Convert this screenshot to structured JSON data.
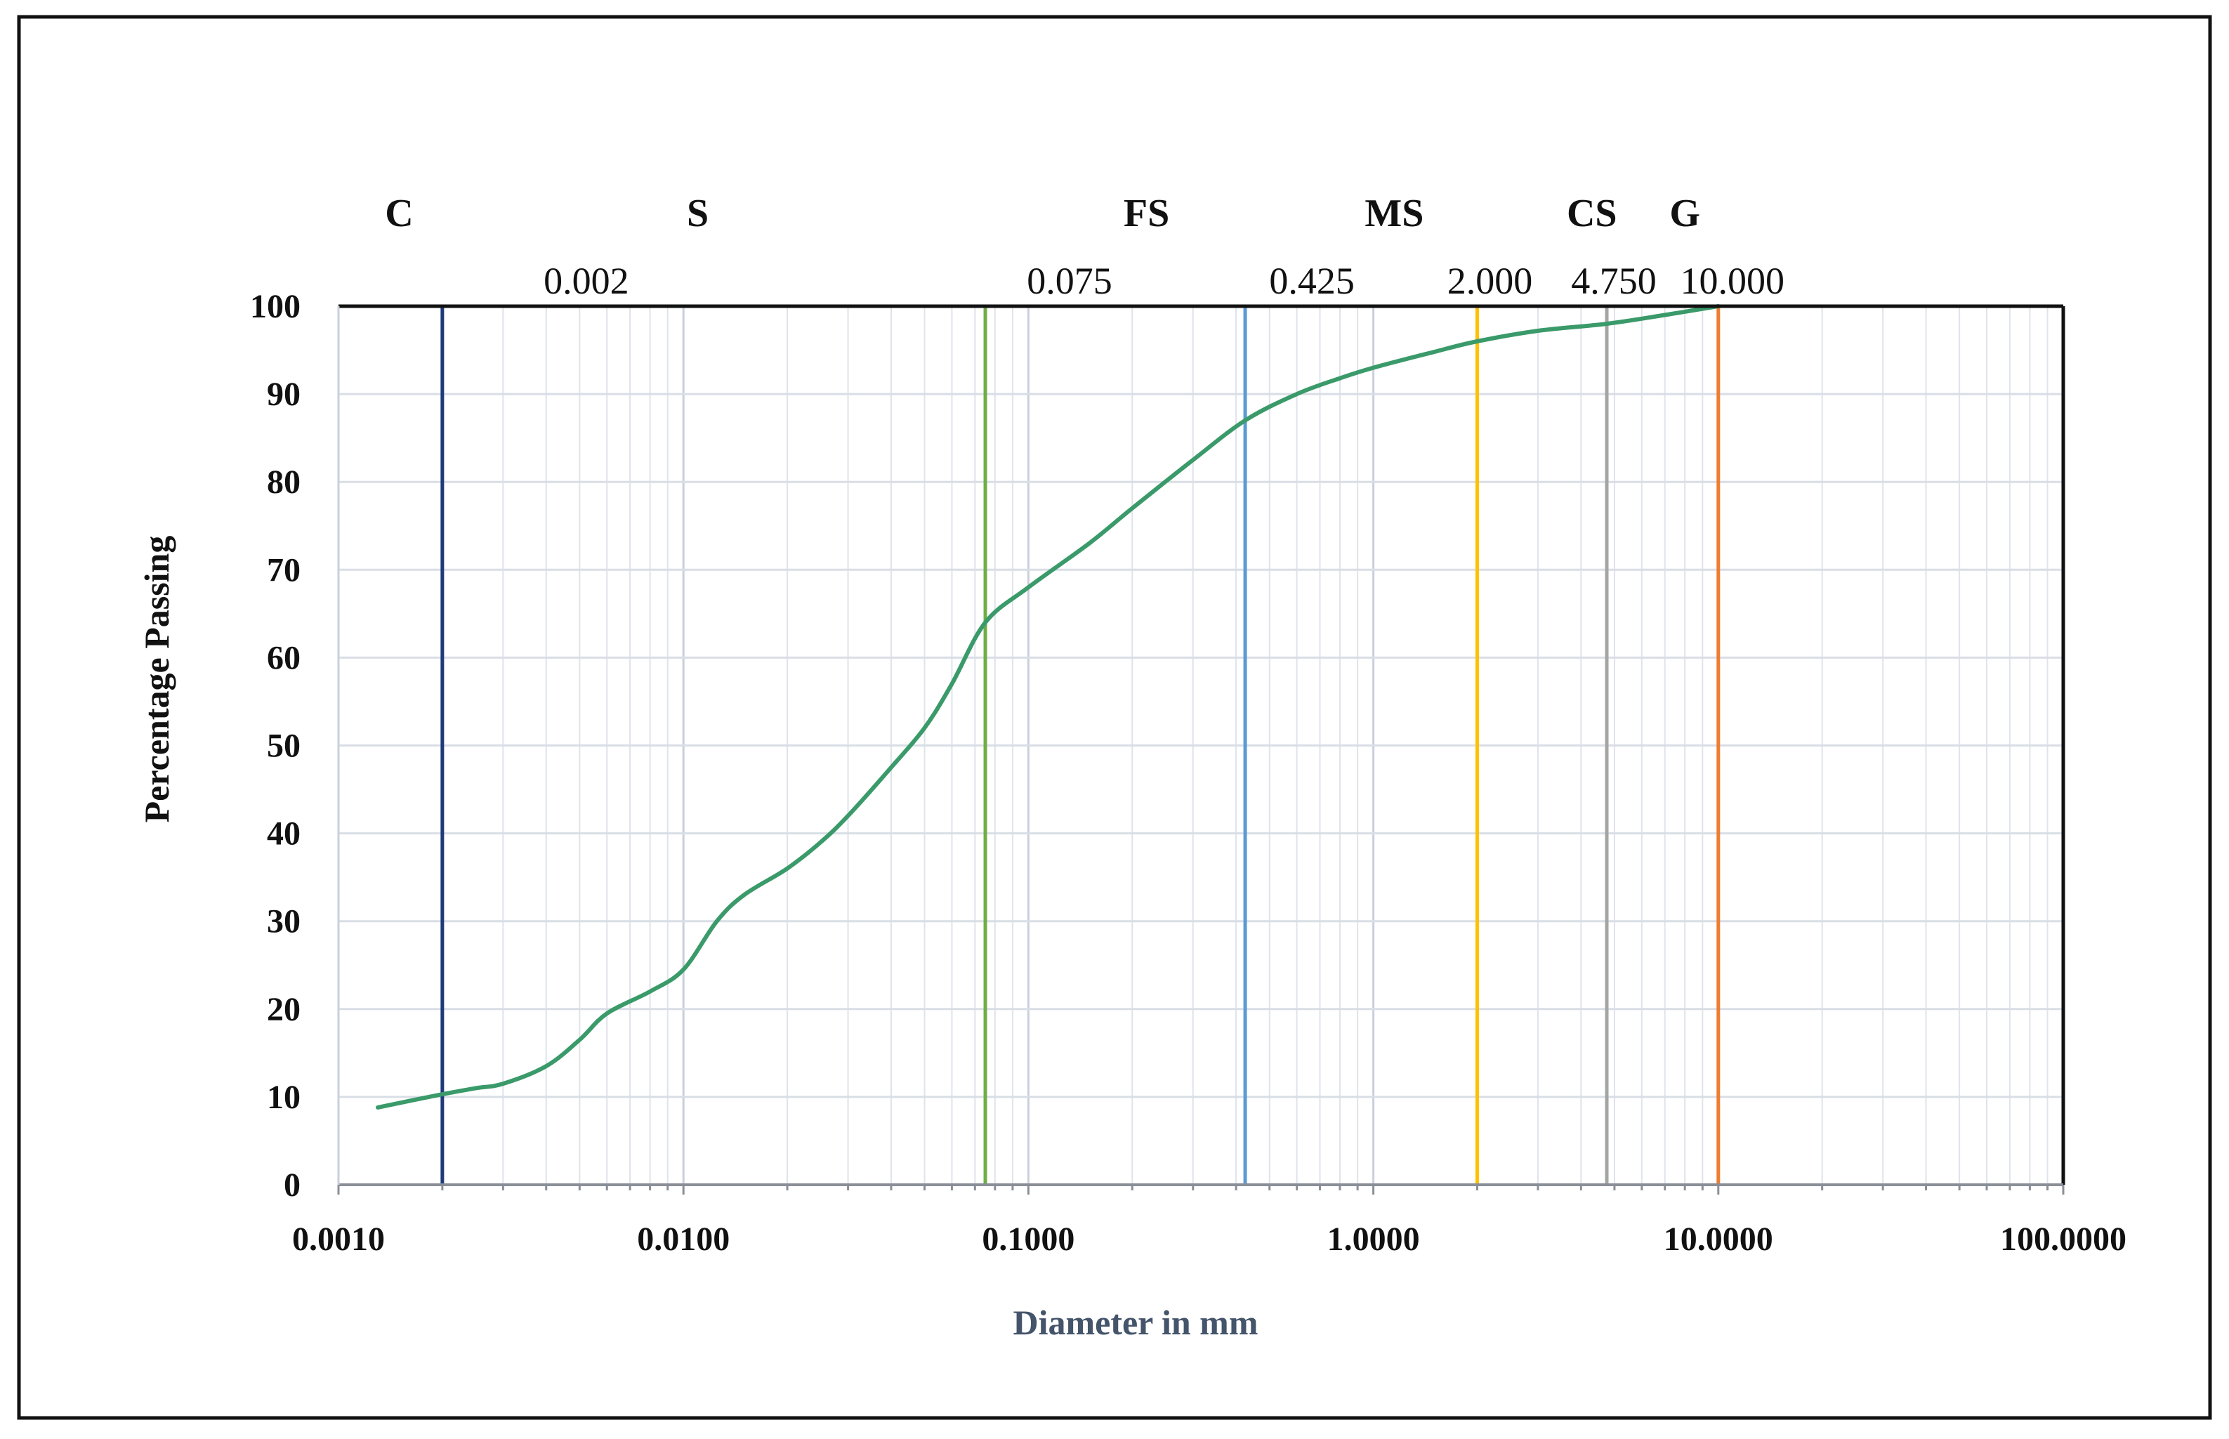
{
  "chart_data": {
    "type": "line",
    "title": "",
    "xlabel": "Diameter in mm",
    "ylabel": "Percentage Passing",
    "x_scale": "log",
    "xlim": [
      0.001,
      100
    ],
    "ylim": [
      0,
      100
    ],
    "grid": true,
    "legend": "none",
    "x_tick_labels": [
      "0.0010",
      "0.0100",
      "0.1000",
      "1.0000",
      "10.0000",
      "100.0000"
    ],
    "x_tick_values": [
      0.001,
      0.01,
      0.1,
      1,
      10,
      100
    ],
    "y_tick_values": [
      0,
      10,
      20,
      30,
      40,
      50,
      60,
      70,
      80,
      90,
      100
    ],
    "series": [
      {
        "color": "#3a9a6a",
        "x": [
          0.0013,
          0.002,
          0.0025,
          0.003,
          0.004,
          0.005,
          0.006,
          0.008,
          0.01,
          0.0125,
          0.015,
          0.02,
          0.025,
          0.03,
          0.04,
          0.05,
          0.06,
          0.075,
          0.1,
          0.15,
          0.2,
          0.3,
          0.425,
          0.6,
          0.8,
          1.0,
          1.5,
          2.0,
          3.0,
          4.75,
          7.0,
          10.0
        ],
        "y": [
          8.8,
          10.3,
          11.0,
          11.5,
          13.5,
          16.5,
          19.5,
          22.0,
          24.5,
          30.0,
          33.0,
          36.0,
          39.0,
          42.0,
          47.5,
          52.0,
          57.0,
          64.0,
          68.0,
          73.0,
          77.0,
          82.5,
          87.0,
          90.0,
          91.8,
          93.0,
          94.8,
          96.0,
          97.2,
          98.0,
          99.0,
          100.0
        ]
      }
    ],
    "boundaries": [
      {
        "value": 0.002,
        "label": "0.002",
        "color": "#1f3a7a"
      },
      {
        "value": 0.075,
        "label": "0.075",
        "color": "#70ad47"
      },
      {
        "value": 0.425,
        "label": "0.425",
        "color": "#5b9bd5"
      },
      {
        "value": 2.0,
        "label": "2.000",
        "color": "#ffc000"
      },
      {
        "value": 4.75,
        "label": "4.750",
        "color": "#a5a5a5"
      },
      {
        "value": 10.0,
        "label": "10.000",
        "color": "#ed7d31"
      }
    ],
    "zones": [
      {
        "label": "C",
        "at": 0.0015
      },
      {
        "label": "S",
        "at": 0.011
      },
      {
        "label": "FS",
        "at": 0.22
      },
      {
        "label": "MS",
        "at": 1.15
      },
      {
        "label": "CS",
        "at": 4.3
      },
      {
        "label": "G",
        "at": 8.0
      }
    ]
  }
}
